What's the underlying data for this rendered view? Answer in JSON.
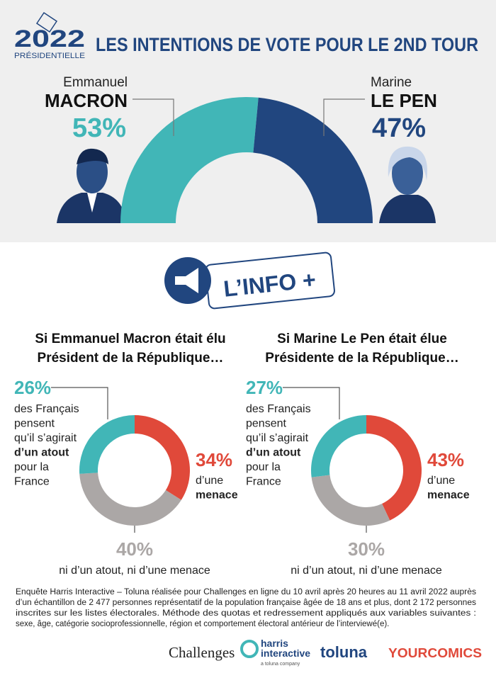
{
  "logo": {
    "year": "2022",
    "label": "PRÉSIDENTIELLE"
  },
  "chart_data": [
    {
      "type": "half-donut",
      "title": "LES INTENTIONS DE VOTE POUR LE 2ND TOUR",
      "first_names": [
        "Emmanuel",
        "Marine"
      ],
      "categories": [
        "MACRON",
        "LE PEN"
      ],
      "values": [
        53,
        47
      ],
      "value_labels": [
        "53%",
        "47%"
      ],
      "colors": [
        "#41b6b7",
        "#21467f"
      ]
    },
    {
      "type": "donut",
      "title": [
        "Si Emmanuel Macron était élu",
        "Président de la République…"
      ],
      "categories": [
        [
          "des Français",
          "pensent",
          "qu’il s’agirait",
          "d’un atout",
          "pour la",
          "France"
        ],
        [
          "d’une",
          "menace"
        ],
        [
          "ni d’un atout, ni d’une menace"
        ]
      ],
      "values": [
        26,
        34,
        40
      ],
      "value_labels": [
        "26%",
        "34%",
        "40%"
      ],
      "colors": [
        "#41b6b7",
        "#e0493a",
        "#aba7a6"
      ]
    },
    {
      "type": "donut",
      "title": [
        "Si Marine Le Pen était élue",
        "Présidente de la République…"
      ],
      "categories": [
        [
          "des Français",
          "pensent",
          "qu’il s’agirait",
          "d’un atout",
          "pour la",
          "France"
        ],
        [
          "d’une",
          "menace"
        ],
        [
          "ni d’un atout, ni d’une menace"
        ]
      ],
      "values": [
        27,
        43,
        30
      ],
      "value_labels": [
        "27%",
        "43%",
        "30%"
      ],
      "colors": [
        "#41b6b7",
        "#e0493a",
        "#aba7a6"
      ]
    }
  ],
  "info_badge": "L’INFO +",
  "footnote": [
    "Enquête Harris Interactive – Toluna réalisée pour Challenges en ligne du 10 avril après 20 heures au 11 avril 2022 auprès",
    "d’un échantillon de 2 477 personnes représentatif de la population française âgée de 18 ans et plus, dont 2 172 personnes",
    "inscrites sur les listes électorales. Méthode des quotas et redressement appliqués aux variables suivantes :",
    "sexe, âge, catégorie socioprofessionnelle, région et comportement électoral antérieur de l’interviewé(e)."
  ],
  "logos": {
    "challenges": "Challenges",
    "harris": [
      "harris",
      "interactive",
      "a toluna company"
    ],
    "toluna": "toluna",
    "yourcomics": "YOURCOMICS"
  }
}
